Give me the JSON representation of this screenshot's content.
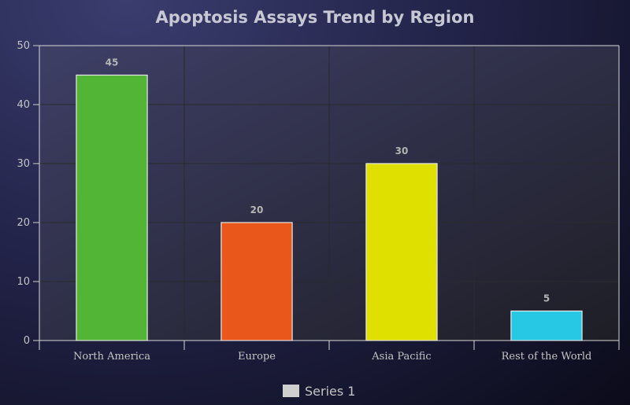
{
  "chart_data": {
    "type": "bar",
    "title": "Apoptosis Assays Trend by Region",
    "xlabel": "",
    "ylabel": "",
    "categories": [
      "North America",
      "Europe",
      "Asia Pacific",
      "Rest of the World"
    ],
    "series": [
      {
        "name": "Series 1",
        "values": [
          45,
          20,
          30,
          5
        ]
      }
    ],
    "bar_colors": [
      "#52b535",
      "#ea571b",
      "#dfe000",
      "#27c8e4"
    ],
    "ylim": [
      0,
      50
    ],
    "yticks": [
      0,
      10,
      20,
      30,
      40,
      50
    ],
    "data_labels": true,
    "grid": true,
    "legend": "bottom"
  }
}
